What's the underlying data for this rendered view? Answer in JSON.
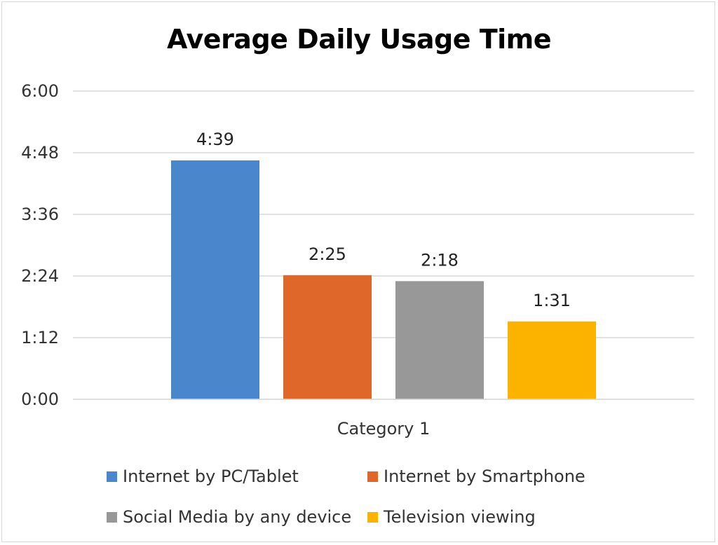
{
  "chart_data": {
    "type": "bar",
    "title": "Average Daily Usage Time",
    "categories": [
      "Category 1"
    ],
    "series": [
      {
        "name": "Internet by PC/Tablet",
        "values": [
          279
        ],
        "label": "4:39",
        "color": "#4a86cc"
      },
      {
        "name": "Internet by Smartphone",
        "values": [
          145
        ],
        "label": "2:25",
        "color": "#e0672a"
      },
      {
        "name": "Social Media by any device",
        "values": [
          138
        ],
        "label": "2:18",
        "color": "#989898"
      },
      {
        "name": "Television viewing",
        "values": [
          91
        ],
        "label": "1:31",
        "color": "#fbb300"
      }
    ],
    "y_unit": "minutes",
    "ylim": [
      0,
      360
    ],
    "yticks": [
      {
        "value": 0,
        "label": "0:00"
      },
      {
        "value": 72,
        "label": "1:12"
      },
      {
        "value": 144,
        "label": "2:24"
      },
      {
        "value": 216,
        "label": "3:36"
      },
      {
        "value": 288,
        "label": "4:48"
      },
      {
        "value": 360,
        "label": "6:00"
      }
    ],
    "grid": true,
    "legend_position": "bottom"
  }
}
